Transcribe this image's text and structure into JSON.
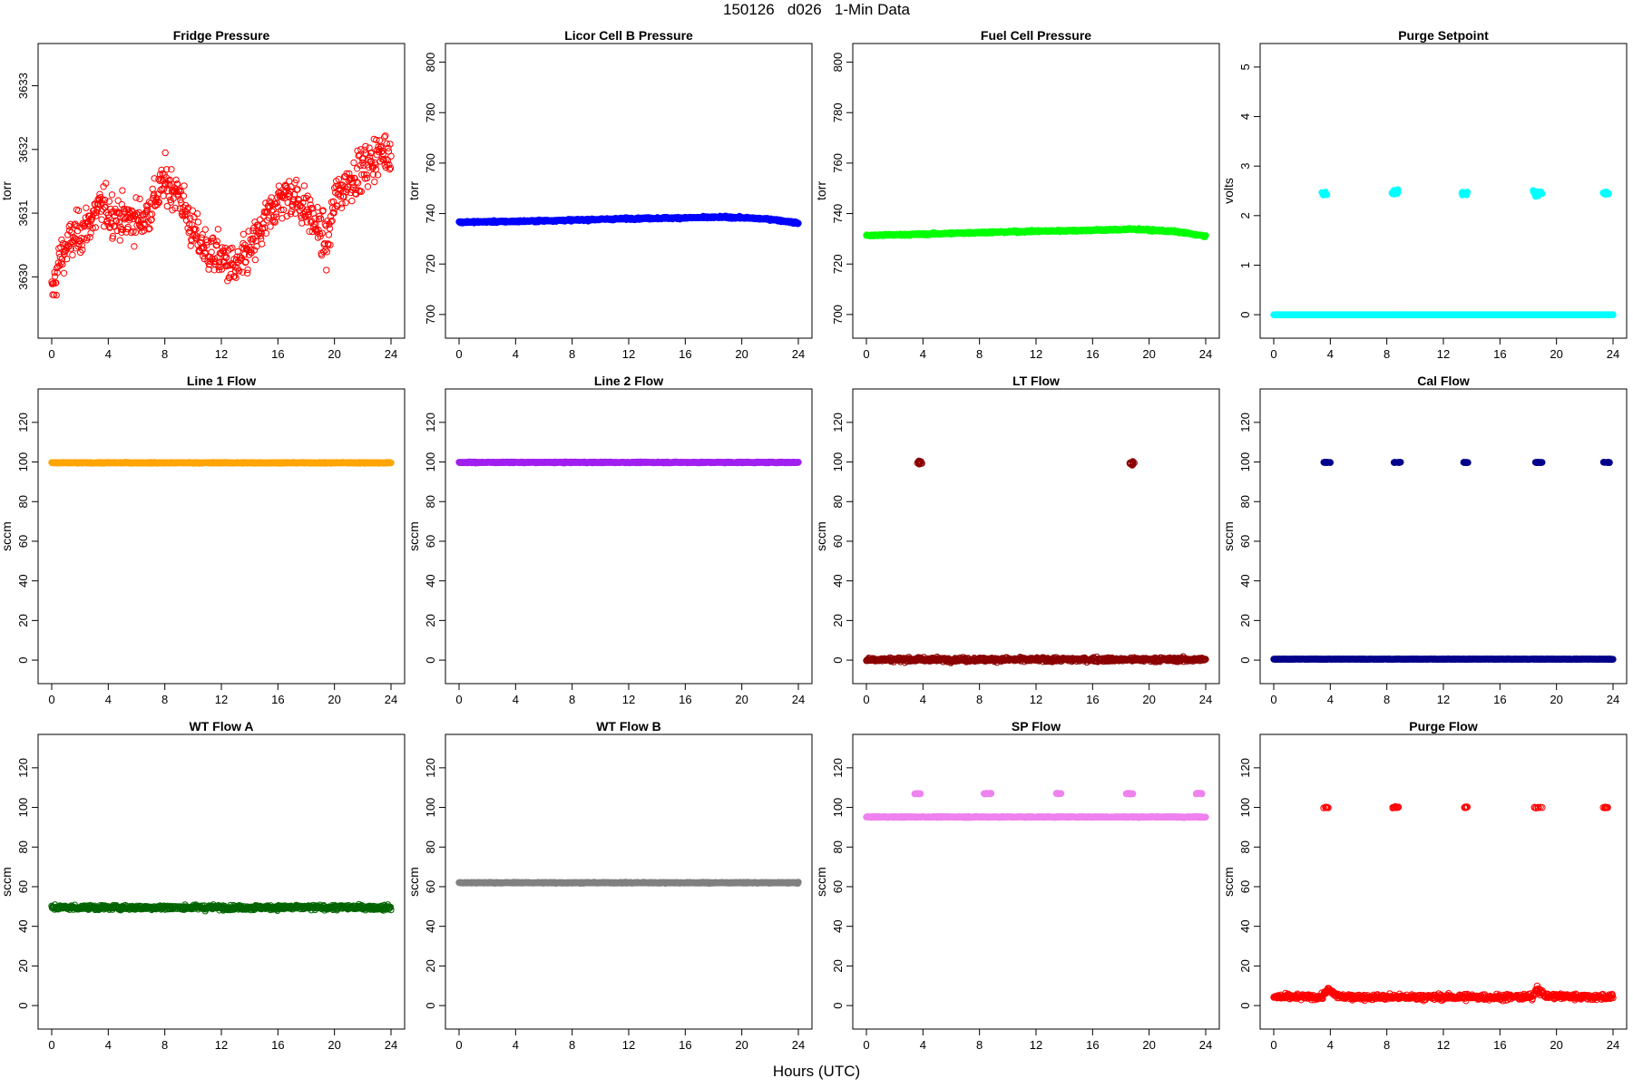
{
  "figure": {
    "title": "150126   d026   1-Min Data",
    "xlabel": "Hours (UTC)"
  },
  "chart_data": [
    {
      "type": "scatter",
      "title": "Fridge Pressure",
      "ylabel": "torr",
      "xlim": [
        0,
        24
      ],
      "ylim": [
        3629.25,
        3633.45
      ],
      "xticks": [
        0,
        4,
        8,
        12,
        16,
        20,
        24
      ],
      "yticks": [
        3630,
        3631,
        3632,
        3633
      ],
      "color": "#ff0000",
      "points_per_hour": 30,
      "noise": 0.28,
      "profile": [
        [
          0,
          3629.7
        ],
        [
          0.6,
          3630.3
        ],
        [
          1.5,
          3630.6
        ],
        [
          2.5,
          3630.8
        ],
        [
          3.5,
          3631.1
        ],
        [
          5,
          3630.9
        ],
        [
          6.5,
          3630.9
        ],
        [
          8,
          3631.5
        ],
        [
          9,
          3631.3
        ],
        [
          10,
          3630.7
        ],
        [
          11,
          3630.4
        ],
        [
          12,
          3630.3
        ],
        [
          13,
          3630.1
        ],
        [
          14,
          3630.4
        ],
        [
          15,
          3630.8
        ],
        [
          16,
          3631.2
        ],
        [
          17,
          3631.3
        ],
        [
          18.2,
          3631.0
        ],
        [
          19,
          3630.7
        ],
        [
          19.5,
          3630.5
        ],
        [
          20,
          3631.2
        ],
        [
          21,
          3631.5
        ],
        [
          22,
          3631.7
        ],
        [
          23,
          3631.9
        ],
        [
          24,
          3632.0
        ]
      ]
    },
    {
      "type": "scatter",
      "title": "Licor Cell B Pressure",
      "ylabel": "torr",
      "xlim": [
        0,
        24
      ],
      "ylim": [
        696,
        802
      ],
      "xticks": [
        0,
        4,
        8,
        12,
        16,
        20,
        24
      ],
      "yticks": [
        700,
        720,
        740,
        760,
        780,
        800
      ],
      "color": "#0000ff",
      "filled": true,
      "points_per_hour": 30,
      "noise": 0.3,
      "profile": [
        [
          0,
          736.6
        ],
        [
          4,
          736.9
        ],
        [
          8,
          737.4
        ],
        [
          12,
          738.0
        ],
        [
          16,
          738.3
        ],
        [
          19,
          738.6
        ],
        [
          22,
          737.8
        ],
        [
          24,
          736.2
        ]
      ]
    },
    {
      "type": "scatter",
      "title": "Fuel Cell Pressure",
      "ylabel": "torr",
      "xlim": [
        0,
        24
      ],
      "ylim": [
        696,
        802
      ],
      "xticks": [
        0,
        4,
        8,
        12,
        16,
        20,
        24
      ],
      "yticks": [
        700,
        720,
        740,
        760,
        780,
        800
      ],
      "color": "#00ff00",
      "filled": true,
      "points_per_hour": 30,
      "noise": 0.3,
      "profile": [
        [
          0,
          731.3
        ],
        [
          4,
          731.8
        ],
        [
          8,
          732.5
        ],
        [
          12,
          733.0
        ],
        [
          16,
          733.4
        ],
        [
          19,
          733.8
        ],
        [
          22,
          732.8
        ],
        [
          24,
          731.0
        ]
      ]
    },
    {
      "type": "scatter",
      "title": "Purge Setpoint",
      "ylabel": "volts",
      "xlim": [
        0,
        24
      ],
      "ylim": [
        -0.2,
        5.2
      ],
      "xticks": [
        0,
        4,
        8,
        12,
        16,
        20,
        24
      ],
      "yticks": [
        0,
        1,
        2,
        3,
        4,
        5
      ],
      "color": "#00ffff",
      "filled": true,
      "points_per_hour": 30,
      "noise": 0.0,
      "profile": [
        [
          0,
          0
        ],
        [
          24,
          0
        ]
      ],
      "clusters": [
        {
          "x": [
            3.4,
            3.8
          ],
          "y": 2.45,
          "n": 12,
          "noise": 0.03
        },
        {
          "x": [
            8.3,
            8.8
          ],
          "y": 2.47,
          "n": 15,
          "noise": 0.05
        },
        {
          "x": [
            13.3,
            13.7
          ],
          "y": 2.45,
          "n": 12,
          "noise": 0.03
        },
        {
          "x": [
            18.3,
            19.0
          ],
          "y": 2.47,
          "n": 14,
          "noise": 0.05
        },
        {
          "x": [
            23.3,
            23.7
          ],
          "y": 2.45,
          "n": 12,
          "noise": 0.03
        }
      ]
    },
    {
      "type": "scatter",
      "title": "Line 1 Flow",
      "ylabel": "sccm",
      "xlim": [
        0,
        24
      ],
      "ylim": [
        -5,
        130
      ],
      "xticks": [
        0,
        4,
        8,
        12,
        16,
        20,
        24
      ],
      "yticks": [
        0,
        20,
        40,
        60,
        80,
        100,
        120
      ],
      "color": "#ffa500",
      "filled": true,
      "points_per_hour": 30,
      "noise": 0.2,
      "profile": [
        [
          0,
          99.6
        ],
        [
          24,
          99.6
        ]
      ]
    },
    {
      "type": "scatter",
      "title": "Line 2 Flow",
      "ylabel": "sccm",
      "xlim": [
        0,
        24
      ],
      "ylim": [
        -5,
        130
      ],
      "xticks": [
        0,
        4,
        8,
        12,
        16,
        20,
        24
      ],
      "yticks": [
        0,
        20,
        40,
        60,
        80,
        100,
        120
      ],
      "color": "#a020f0",
      "filled": true,
      "points_per_hour": 30,
      "noise": 0.2,
      "profile": [
        [
          0,
          99.8
        ],
        [
          24,
          99.8
        ]
      ]
    },
    {
      "type": "scatter",
      "title": "LT Flow",
      "ylabel": "sccm",
      "xlim": [
        0,
        24
      ],
      "ylim": [
        -5,
        130
      ],
      "xticks": [
        0,
        4,
        8,
        12,
        16,
        20,
        24
      ],
      "yticks": [
        0,
        20,
        40,
        60,
        80,
        100,
        120
      ],
      "color": "#8b0000",
      "points_per_hour": 30,
      "noise": 0.9,
      "profile": [
        [
          0,
          0.3
        ],
        [
          24,
          0.3
        ]
      ],
      "clusters": [
        {
          "x": [
            3.6,
            3.95
          ],
          "y": 99.8,
          "n": 14,
          "noise": 1.0
        },
        {
          "x": [
            18.6,
            18.95
          ],
          "y": 99.6,
          "n": 14,
          "noise": 1.0
        }
      ]
    },
    {
      "type": "scatter",
      "title": "Cal Flow",
      "ylabel": "sccm",
      "xlim": [
        0,
        24
      ],
      "ylim": [
        -5,
        130
      ],
      "xticks": [
        0,
        4,
        8,
        12,
        16,
        20,
        24
      ],
      "yticks": [
        0,
        20,
        40,
        60,
        80,
        100,
        120
      ],
      "color": "#00008b",
      "filled": true,
      "points_per_hour": 30,
      "noise": 0.1,
      "profile": [
        [
          0,
          0.5
        ],
        [
          24,
          0.5
        ]
      ],
      "clusters": [
        {
          "x": [
            3.5,
            4.0
          ],
          "y": 99.8,
          "n": 14,
          "noise": 0.1
        },
        {
          "x": [
            8.5,
            9.0
          ],
          "y": 99.8,
          "n": 14,
          "noise": 0.1
        },
        {
          "x": [
            13.4,
            13.8
          ],
          "y": 99.8,
          "n": 12,
          "noise": 0.1
        },
        {
          "x": [
            18.5,
            19.1
          ],
          "y": 99.8,
          "n": 14,
          "noise": 0.1
        },
        {
          "x": [
            23.3,
            23.8
          ],
          "y": 99.8,
          "n": 12,
          "noise": 0.1
        }
      ]
    },
    {
      "type": "scatter",
      "title": "WT Flow A",
      "ylabel": "sccm",
      "xlim": [
        0,
        24
      ],
      "ylim": [
        -5,
        130
      ],
      "xticks": [
        0,
        4,
        8,
        12,
        16,
        20,
        24
      ],
      "yticks": [
        0,
        20,
        40,
        60,
        80,
        100,
        120
      ],
      "color": "#006400",
      "points_per_hour": 30,
      "noise": 1.0,
      "profile": [
        [
          0,
          49.5
        ],
        [
          24,
          49.5
        ]
      ]
    },
    {
      "type": "scatter",
      "title": "WT Flow B",
      "ylabel": "sccm",
      "xlim": [
        0,
        24
      ],
      "ylim": [
        -5,
        130
      ],
      "xticks": [
        0,
        4,
        8,
        12,
        16,
        20,
        24
      ],
      "yticks": [
        0,
        20,
        40,
        60,
        80,
        100,
        120
      ],
      "color": "#808080",
      "filled": true,
      "points_per_hour": 30,
      "noise": 0.2,
      "profile": [
        [
          0,
          62.0
        ],
        [
          24,
          62.0
        ]
      ]
    },
    {
      "type": "scatter",
      "title": "SP Flow",
      "ylabel": "sccm",
      "xlim": [
        0,
        24
      ],
      "ylim": [
        -5,
        130
      ],
      "xticks": [
        0,
        4,
        8,
        12,
        16,
        20,
        24
      ],
      "yticks": [
        0,
        20,
        40,
        60,
        80,
        100,
        120
      ],
      "color": "#ee82ee",
      "filled": true,
      "points_per_hour": 30,
      "noise": 0.2,
      "profile": [
        [
          0,
          95.2
        ],
        [
          24,
          95.2
        ]
      ],
      "clusters": [
        {
          "x": [
            3.4,
            3.9
          ],
          "y": 107.0,
          "n": 12,
          "noise": 0.2
        },
        {
          "x": [
            8.3,
            8.9
          ],
          "y": 107.0,
          "n": 14,
          "noise": 0.2
        },
        {
          "x": [
            13.4,
            13.8
          ],
          "y": 107.0,
          "n": 12,
          "noise": 0.2
        },
        {
          "x": [
            18.3,
            18.9
          ],
          "y": 107.0,
          "n": 14,
          "noise": 0.2
        },
        {
          "x": [
            23.3,
            23.8
          ],
          "y": 107.0,
          "n": 12,
          "noise": 0.2
        }
      ]
    },
    {
      "type": "scatter",
      "title": "Purge Flow",
      "ylabel": "sccm",
      "xlim": [
        0,
        24
      ],
      "ylim": [
        -5,
        130
      ],
      "xticks": [
        0,
        4,
        8,
        12,
        16,
        20,
        24
      ],
      "yticks": [
        0,
        20,
        40,
        60,
        80,
        100,
        120
      ],
      "color": "#ff0000",
      "points_per_hour": 30,
      "noise": 1.2,
      "profile": [
        [
          0,
          4.3
        ],
        [
          3.4,
          4.3
        ],
        [
          3.8,
          8.0
        ],
        [
          4.5,
          5.0
        ],
        [
          5,
          4.3
        ],
        [
          18.3,
          4.3
        ],
        [
          18.6,
          9.0
        ],
        [
          19.2,
          4.8
        ],
        [
          24,
          4.3
        ]
      ],
      "clusters": [
        {
          "x": [
            3.5,
            3.9
          ],
          "y": 100.0,
          "n": 10,
          "noise": 0.3
        },
        {
          "x": [
            8.4,
            8.9
          ],
          "y": 100.0,
          "n": 12,
          "noise": 0.3
        },
        {
          "x": [
            13.4,
            13.7
          ],
          "y": 100.0,
          "n": 9,
          "noise": 0.3
        },
        {
          "x": [
            18.4,
            19.0
          ],
          "y": 100.0,
          "n": 12,
          "noise": 0.3
        },
        {
          "x": [
            23.3,
            23.7
          ],
          "y": 100.0,
          "n": 9,
          "noise": 0.3
        }
      ]
    }
  ]
}
